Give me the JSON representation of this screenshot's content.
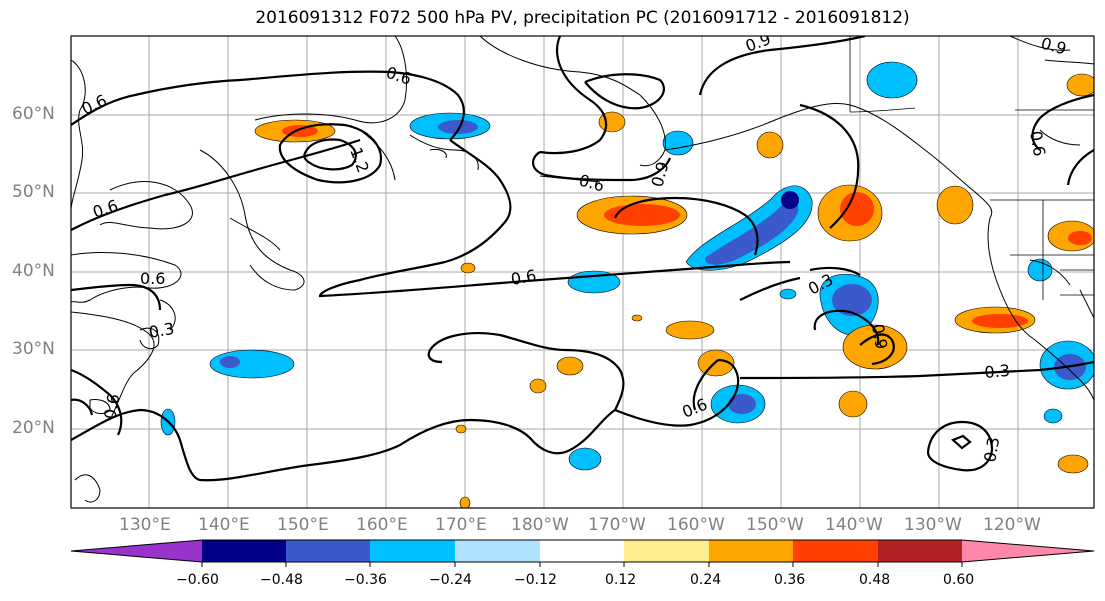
{
  "title": "2016091312 F072 500 hPa PV, precipitation PC (2016091712 - 2016091812)",
  "colors": {
    "c_n060": "#9933cc",
    "c_n048": "#000088",
    "c_n036": "#3a5acb",
    "c_n024": "#00bfff",
    "c_n012": "#b0e2ff",
    "c_zero": "#ffffff",
    "c_p012": "#ffec8b",
    "c_p024": "#ffa500",
    "c_p036": "#ff4000",
    "c_p048": "#b22222",
    "c_p060": "#ff88aa",
    "grid": "#aaaaaa",
    "coast": "#000000"
  },
  "lat_labels": [
    "60°N",
    "50°N",
    "40°N",
    "30°N",
    "20°N"
  ],
  "lon_labels": [
    "130°E",
    "140°E",
    "150°E",
    "160°E",
    "170°E",
    "180°W",
    "170°W",
    "160°W",
    "150°W",
    "140°W",
    "130°W",
    "120°W"
  ],
  "contour_labels": [
    "0.6",
    "0.6",
    "0.6",
    "0.6",
    "0.6",
    "0.6",
    "0.6",
    "0.3",
    "0.3",
    "0.3",
    "0.3",
    "0.9",
    "0.9",
    "1.2",
    "0.9",
    "0.6",
    "0.6",
    "0.9"
  ],
  "colorbar": {
    "tick_labels": [
      "−0.60",
      "−0.48",
      "−0.36",
      "−0.24",
      "−0.12",
      "0.12",
      "0.24",
      "0.36",
      "0.48",
      "0.60"
    ]
  }
}
